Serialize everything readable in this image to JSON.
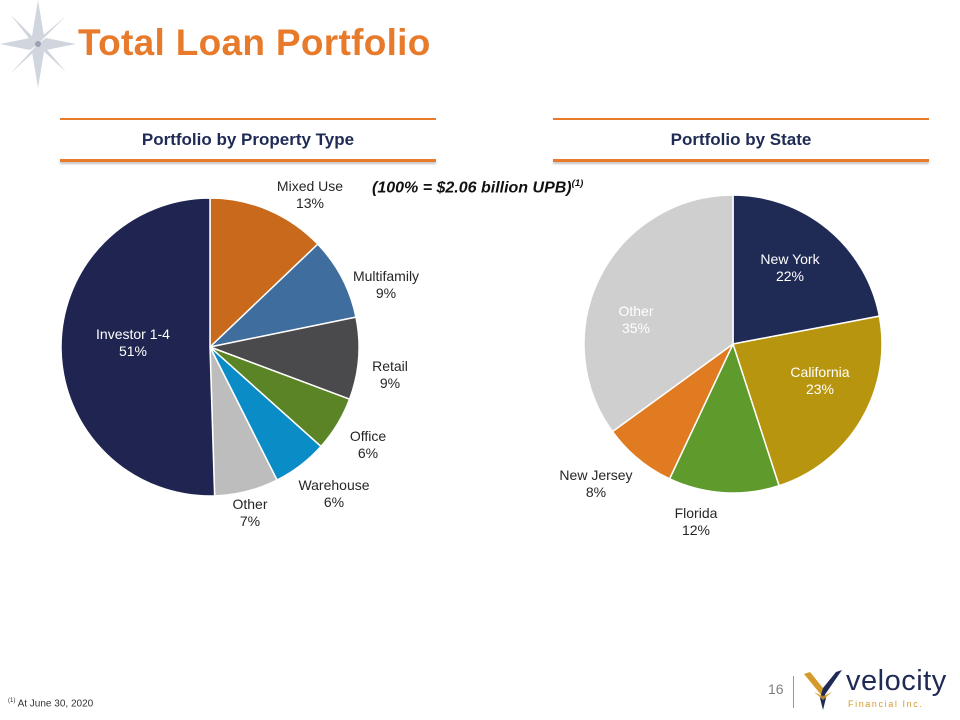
{
  "title": "Total Loan Portfolio",
  "subtitle": {
    "text": "(100% = $2.06 billion UPB)",
    "sup": "(1)"
  },
  "footnote": {
    "sup": "(1)",
    "text": "At June 30, 2020"
  },
  "page_number": "16",
  "logo": {
    "name": "velocity",
    "tagline": "Financial Inc."
  },
  "colors": {
    "title": "#E87B2B",
    "heading": "#1F2A55"
  },
  "chart_data": [
    {
      "type": "pie",
      "title": "Portfolio by Property Type",
      "unit": "%",
      "start_angle_deg": 0,
      "slices": [
        {
          "label": "Mixed Use",
          "value": 13,
          "display": "13%",
          "color": "#C8691C"
        },
        {
          "label": "Multifamily",
          "value": 9,
          "display": "9%",
          "color": "#3F6E9E"
        },
        {
          "label": "Retail",
          "value": 9,
          "display": "9%",
          "color": "#4A4A4C"
        },
        {
          "label": "Office",
          "value": 6,
          "display": "6%",
          "color": "#5A8426"
        },
        {
          "label": "Warehouse",
          "value": 6,
          "display": "6%",
          "color": "#0A8CC7"
        },
        {
          "label": "Other",
          "value": 7,
          "display": "7%",
          "color": "#BDBDBD"
        },
        {
          "label": "Investor  1-4",
          "value": 51,
          "display": "51%",
          "color": "#1F2550"
        }
      ]
    },
    {
      "type": "pie",
      "title": "Portfolio by State",
      "unit": "%",
      "start_angle_deg": 0,
      "slices": [
        {
          "label": "New York",
          "value": 22,
          "display": "22%",
          "color": "#1F2A55"
        },
        {
          "label": "California",
          "value": 23,
          "display": "23%",
          "color": "#B8950E"
        },
        {
          "label": "Florida",
          "value": 12,
          "display": "12%",
          "color": "#5F9A2C"
        },
        {
          "label": "New Jersey",
          "value": 8,
          "display": "8%",
          "color": "#E07B22"
        },
        {
          "label": "Other",
          "value": 35,
          "display": "35%",
          "color": "#CFCFCF"
        }
      ]
    }
  ]
}
